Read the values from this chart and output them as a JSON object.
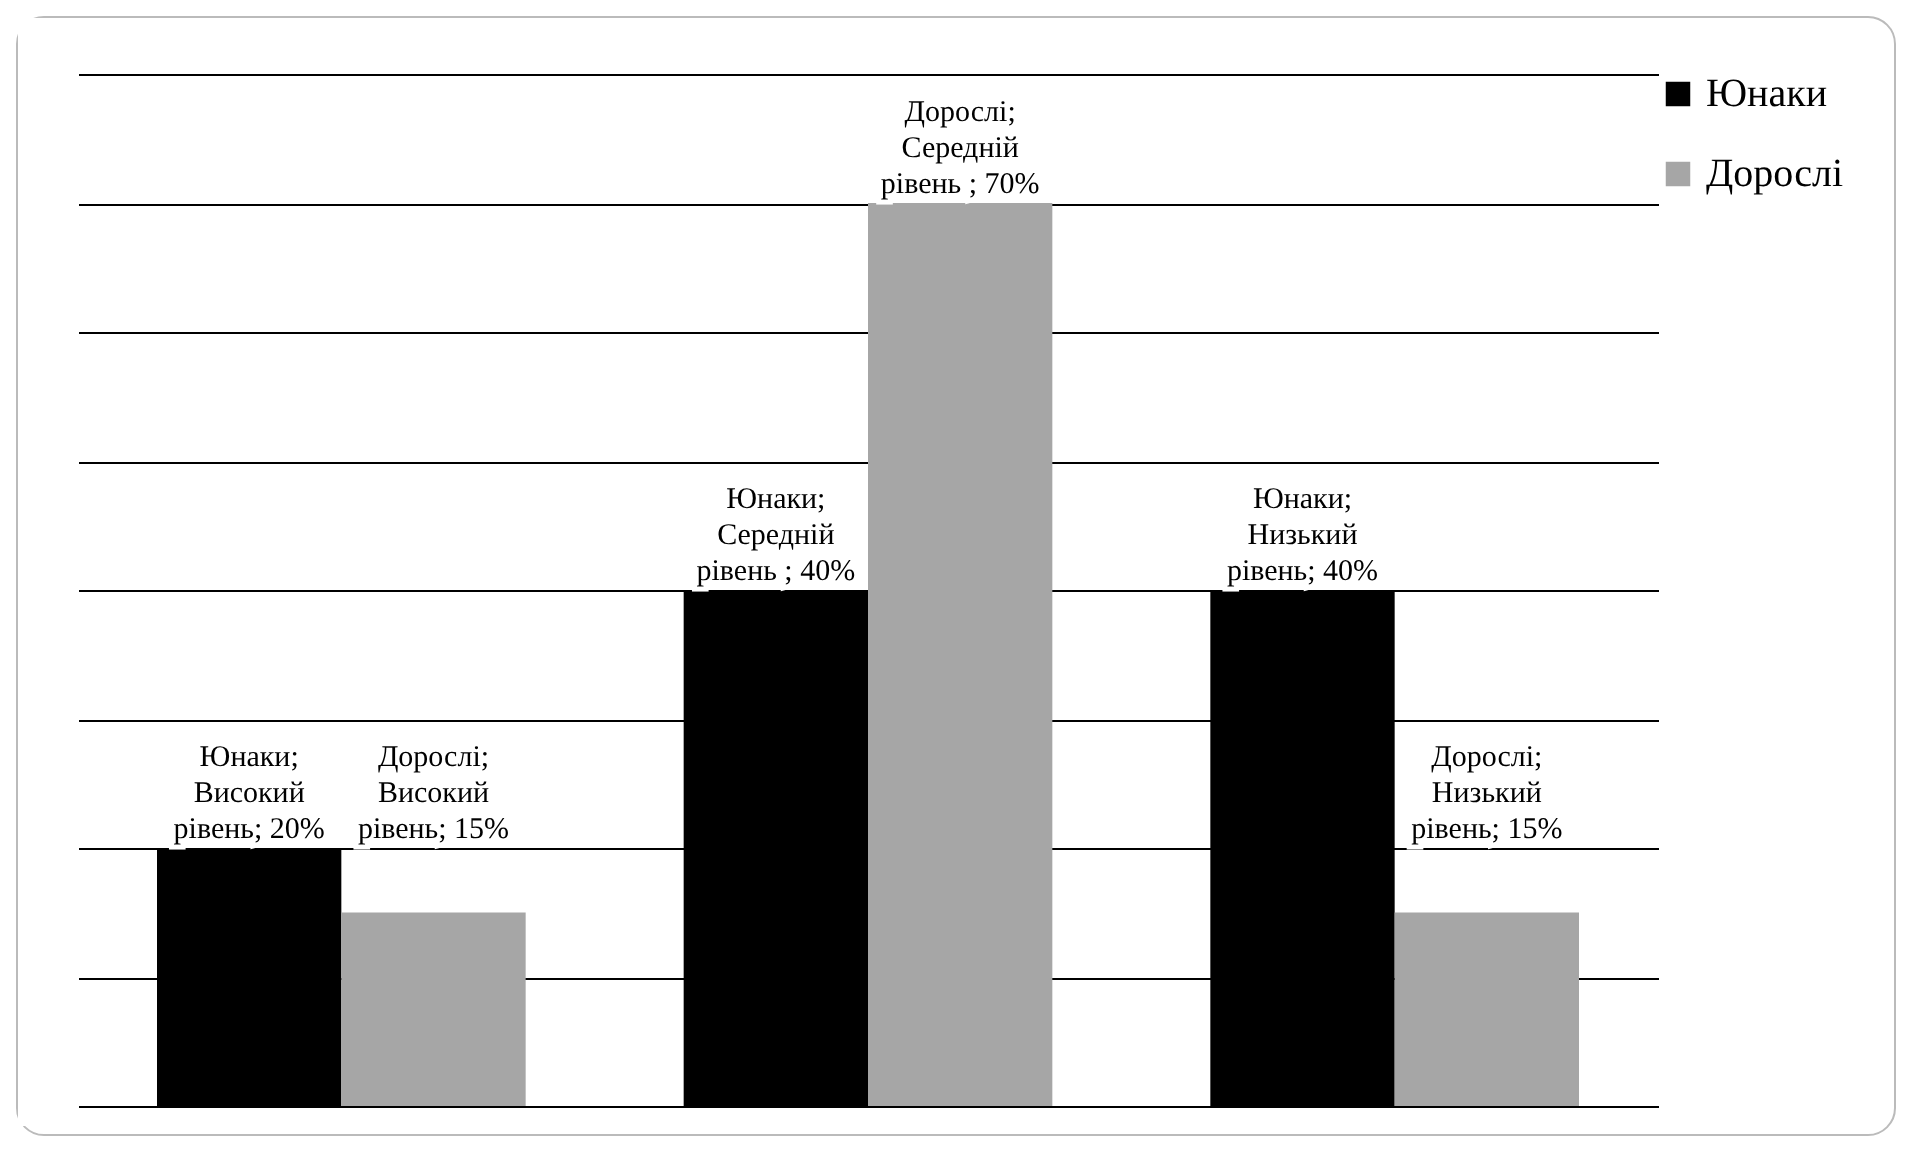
{
  "chart_data": {
    "type": "bar",
    "categories": [
      null,
      null,
      null
    ],
    "series": [
      {
        "name": "Юнаки",
        "color": "#000000",
        "values": [
          20,
          40,
          40
        ],
        "value_labels": [
          "Юнаки; Високий рівень; 20%",
          "Юнаки; Середній рівень ; 40%",
          "Юнаки; Низький рівень; 40%"
        ]
      },
      {
        "name": "Дорослі",
        "color": "#a6a6a6",
        "values": [
          15,
          70,
          15
        ],
        "value_labels": [
          "Дорослі; Високий рівень; 15%",
          "Дорослі; Середній рівень ; 70%",
          "Дорослі; Низький рівень; 15%"
        ]
      }
    ],
    "ylim": [
      0,
      80
    ],
    "yticks": [
      {
        "value": 0,
        "label": null
      },
      {
        "value": 10,
        "label": null
      },
      {
        "value": 20,
        "label": null
      },
      {
        "value": 30,
        "label": null
      },
      {
        "value": 40,
        "label": null
      },
      {
        "value": 50,
        "label": null
      },
      {
        "value": 60,
        "label": null
      },
      {
        "value": 70,
        "label": null
      },
      {
        "value": 80,
        "label": null
      }
    ],
    "tick_labels": false,
    "grid": "y",
    "legend": "right"
  }
}
